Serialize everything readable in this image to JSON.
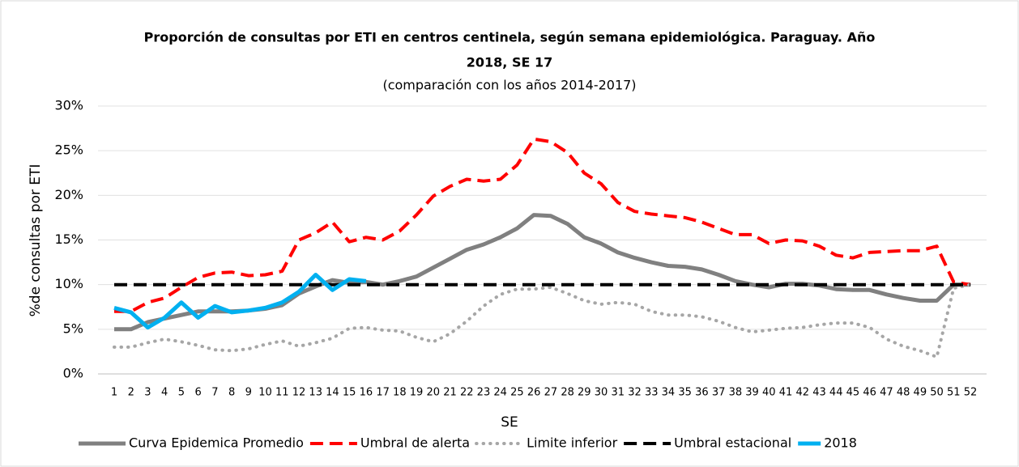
{
  "chart_data": {
    "type": "line",
    "title": [
      "Proporción de consultas por ETI en centros centinela, según semana epidemiológica. Paraguay. Año",
      "2018, SE 17"
    ],
    "subtitle": "(comparación con los años 2014-2017)",
    "x_label": "SE",
    "y_label": "%de consultas por ETI",
    "categories": [
      1,
      2,
      3,
      4,
      5,
      6,
      7,
      8,
      9,
      10,
      11,
      12,
      13,
      14,
      15,
      16,
      17,
      18,
      19,
      20,
      21,
      22,
      23,
      24,
      25,
      26,
      27,
      28,
      29,
      30,
      31,
      32,
      33,
      34,
      35,
      36,
      37,
      38,
      39,
      40,
      41,
      42,
      43,
      44,
      45,
      46,
      47,
      48,
      49,
      50,
      51,
      52
    ],
    "ylim": [
      0,
      30
    ],
    "yticks": [
      {
        "value": 0,
        "label": "0%"
      },
      {
        "value": 5,
        "label": "5%"
      },
      {
        "value": 10,
        "label": "10%"
      },
      {
        "value": 15,
        "label": "15%"
      },
      {
        "value": 20,
        "label": "20%"
      },
      {
        "value": 25,
        "label": "25%"
      },
      {
        "value": 30,
        "label": "30%"
      }
    ],
    "grid": true,
    "legend": "bottom",
    "series": [
      {
        "name": "Curva Epidemica Promedio",
        "color": "#808080",
        "line_style": "solid",
        "values": [
          5.0,
          5.0,
          5.8,
          6.2,
          6.6,
          7.0,
          7.0,
          7.0,
          7.1,
          7.3,
          7.7,
          9.0,
          9.8,
          10.5,
          10.2,
          10.3,
          10.0,
          10.4,
          10.9,
          11.9,
          12.9,
          13.9,
          14.5,
          15.3,
          16.3,
          17.8,
          17.7,
          16.8,
          15.3,
          14.6,
          13.6,
          13.0,
          12.5,
          12.1,
          12.0,
          11.7,
          11.1,
          10.4,
          10.0,
          9.7,
          10.1,
          10.1,
          9.9,
          9.5,
          9.4,
          9.4,
          8.9,
          8.5,
          8.2,
          8.2,
          10.0,
          10.0
        ]
      },
      {
        "name": "Umbral de alerta",
        "color": "#ff0000",
        "line_style": "dashed",
        "values": [
          7.0,
          7.0,
          8.0,
          8.5,
          9.7,
          10.8,
          11.3,
          11.4,
          11.0,
          11.1,
          11.5,
          15.0,
          15.8,
          17.0,
          14.8,
          15.3,
          15.0,
          16.0,
          17.8,
          19.9,
          21.0,
          21.8,
          21.6,
          21.8,
          23.4,
          26.3,
          26.0,
          24.8,
          22.5,
          21.3,
          19.2,
          18.2,
          17.9,
          17.7,
          17.5,
          17.0,
          16.3,
          15.6,
          15.6,
          14.6,
          15.0,
          14.9,
          14.3,
          13.3,
          13.0,
          13.6,
          13.7,
          13.8,
          13.8,
          14.3,
          10.3,
          10.0
        ]
      },
      {
        "name": "Limite inferior",
        "color": "#a6a6a6",
        "line_style": "dotted",
        "values": [
          3.0,
          3.0,
          3.5,
          3.9,
          3.6,
          3.2,
          2.7,
          2.6,
          2.8,
          3.3,
          3.7,
          3.1,
          3.5,
          4.0,
          5.1,
          5.2,
          4.9,
          4.8,
          4.1,
          3.6,
          4.5,
          5.9,
          7.6,
          8.9,
          9.5,
          9.5,
          9.7,
          9.0,
          8.2,
          7.8,
          8.0,
          7.8,
          7.0,
          6.6,
          6.6,
          6.4,
          5.9,
          5.2,
          4.7,
          4.9,
          5.1,
          5.2,
          5.5,
          5.7,
          5.7,
          5.2,
          3.9,
          3.1,
          2.6,
          1.9,
          9.6,
          10.0
        ]
      },
      {
        "name": "Umbral estacional",
        "color": "#000000",
        "line_style": "dashed",
        "values": [
          10,
          10,
          10,
          10,
          10,
          10,
          10,
          10,
          10,
          10,
          10,
          10,
          10,
          10,
          10,
          10,
          10,
          10,
          10,
          10,
          10,
          10,
          10,
          10,
          10,
          10,
          10,
          10,
          10,
          10,
          10,
          10,
          10,
          10,
          10,
          10,
          10,
          10,
          10,
          10,
          10,
          10,
          10,
          10,
          10,
          10,
          10,
          10,
          10,
          10,
          10,
          10
        ]
      },
      {
        "name": "2018",
        "color": "#00b0f0",
        "line_style": "solid",
        "values": [
          7.4,
          6.9,
          5.2,
          6.3,
          8.0,
          6.3,
          7.6,
          6.9,
          7.1,
          7.4,
          8.0,
          9.2,
          11.1,
          9.4,
          10.6,
          10.4,
          null,
          null,
          null,
          null,
          null,
          null,
          null,
          null,
          null,
          null,
          null,
          null,
          null,
          null,
          null,
          null,
          null,
          null,
          null,
          null,
          null,
          null,
          null,
          null,
          null,
          null,
          null,
          null,
          null,
          null,
          null,
          null,
          null,
          null,
          null,
          null
        ]
      }
    ]
  }
}
